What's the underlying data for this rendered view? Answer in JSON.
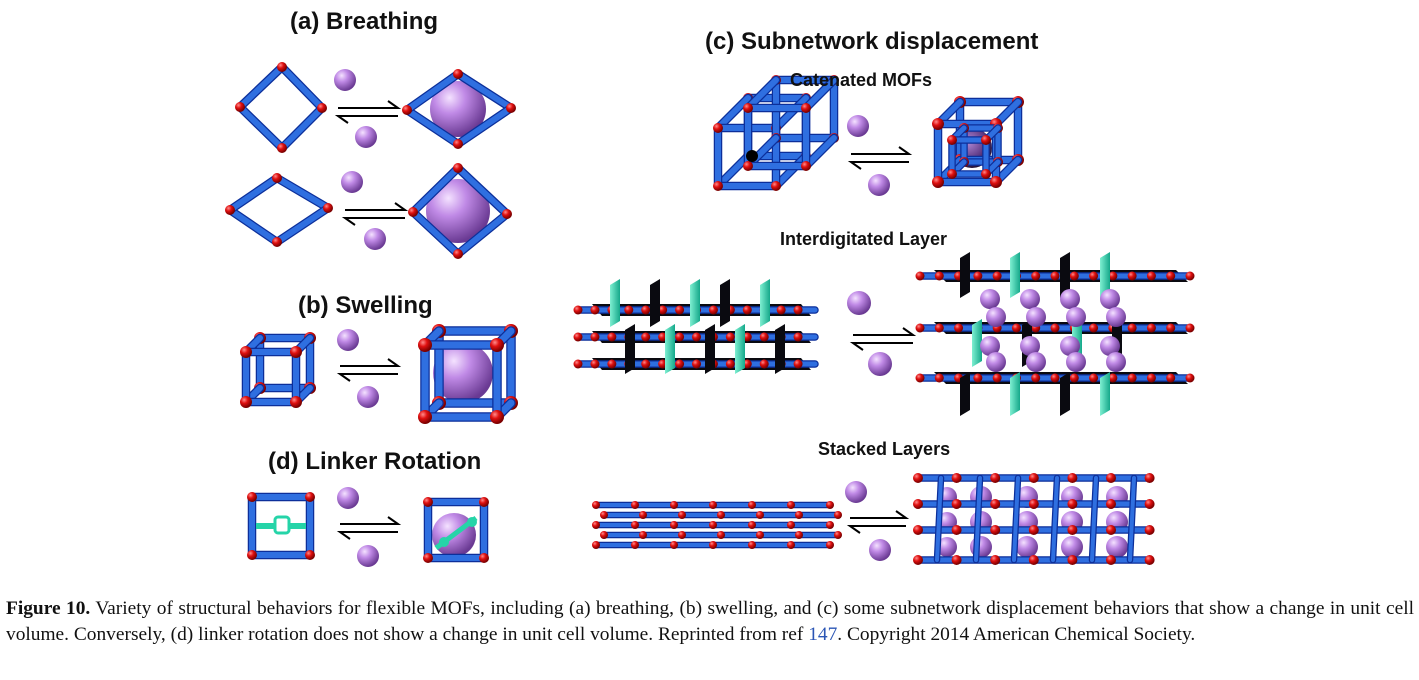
{
  "panels": {
    "a": {
      "title": "(a)  Breathing"
    },
    "b": {
      "title": "(b)  Swelling"
    },
    "c": {
      "title": "(c)  Subnetwork displacement",
      "catenated": "Catenated MOFs",
      "interdigitated": "Interdigitated Layer",
      "stacked": "Stacked Layers"
    },
    "d": {
      "title": "(d)  Linker Rotation"
    }
  },
  "colors": {
    "strut": "#2f6fe0",
    "strut_dark": "#0c2f9a",
    "node": "#d40000",
    "guest": "#b77de0",
    "linker": "#25d4a8",
    "layer": "#0a0a10"
  },
  "caption": {
    "label": "Figure 10.",
    "text": " Variety of structural behaviors for flexible MOFs, including (a) breathing, (b) swelling, and (c) some subnetwork displacement behaviors that show a change in unit cell volume. Conversely, (d) linker rotation does not show a change in unit cell volume. Reprinted from ref ",
    "ref": "147",
    "tail": ". Copyright 2014 American Chemical Society."
  }
}
